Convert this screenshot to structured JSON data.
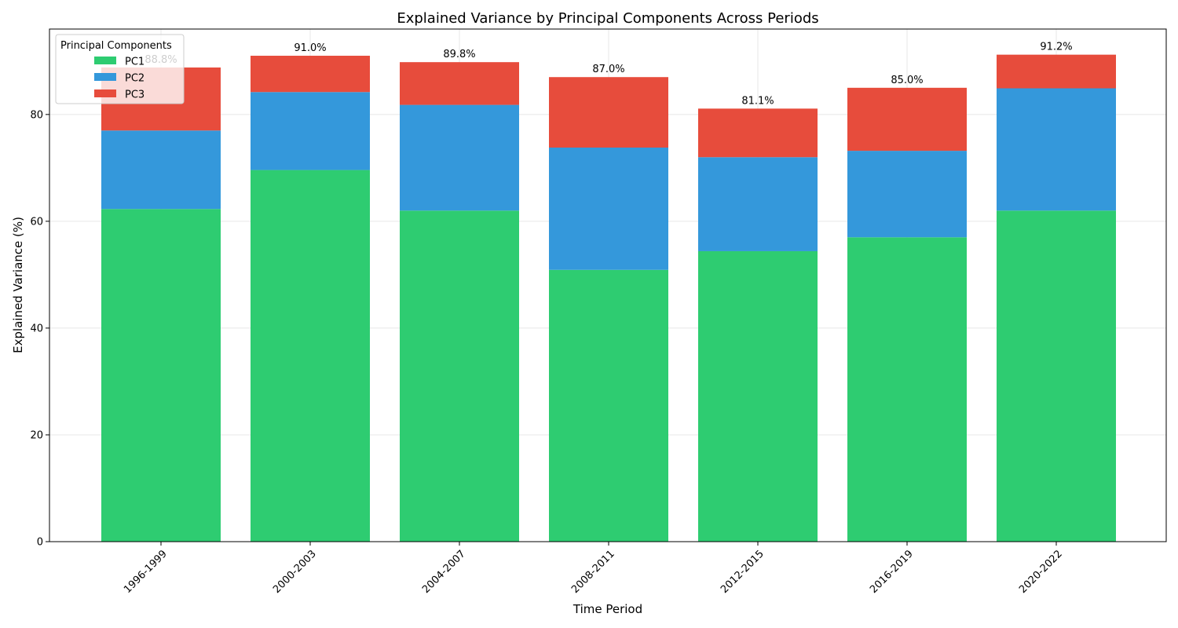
{
  "chart_data": {
    "type": "bar",
    "stacked": true,
    "title": "Explained Variance by Principal Components Across Periods",
    "xlabel": "Time Period",
    "ylabel": "Explained Variance (%)",
    "ylim": [
      0,
      96
    ],
    "yticks": [
      0,
      20,
      40,
      60,
      80
    ],
    "grid": true,
    "legend": {
      "title": "Principal Components",
      "placement": "top-left"
    },
    "categories": [
      "1996-1999",
      "2000-2003",
      "2004-2007",
      "2008-2011",
      "2012-2015",
      "2016-2019",
      "2020-2022"
    ],
    "series": [
      {
        "name": "PC1",
        "color": "#2ecc71",
        "values": [
          62.3,
          69.6,
          62.0,
          50.9,
          54.4,
          57.0,
          62.0
        ]
      },
      {
        "name": "PC2",
        "color": "#3498db",
        "values": [
          14.7,
          14.6,
          19.8,
          22.9,
          17.6,
          16.2,
          22.9
        ]
      },
      {
        "name": "PC3",
        "color": "#e74c3c",
        "values": [
          11.8,
          6.8,
          8.0,
          13.2,
          9.1,
          11.8,
          6.3
        ]
      }
    ],
    "total_labels": [
      "88.8%",
      "91.0%",
      "89.8%",
      "87.0%",
      "81.1%",
      "85.0%",
      "91.2%"
    ]
  }
}
